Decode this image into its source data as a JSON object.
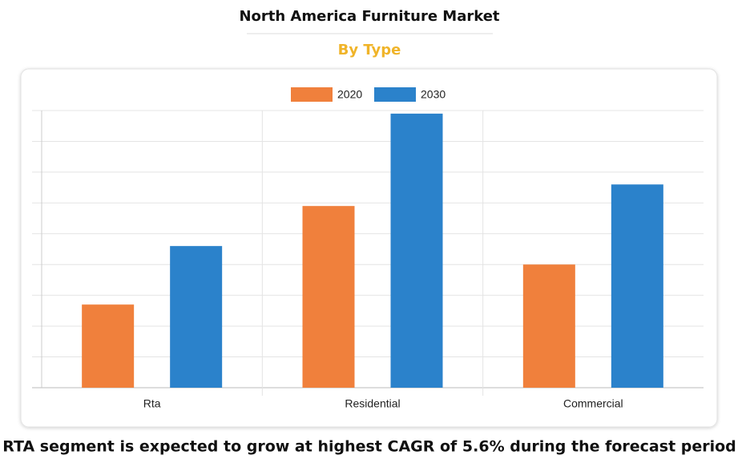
{
  "chart_data": {
    "type": "bar",
    "title": "North America Furniture Market",
    "subtitle": "By Type",
    "footnote": "RTA segment is expected to grow at highest CAGR of 5.6% during the forecast period",
    "categories": [
      "Rta",
      "Residential",
      "Commercial"
    ],
    "series": [
      {
        "name": "2020",
        "color": "#f0803c",
        "values": [
          2.7,
          5.9,
          4.0
        ]
      },
      {
        "name": "2030",
        "color": "#2b82cb",
        "values": [
          4.6,
          8.9,
          6.6
        ]
      }
    ],
    "ylim": [
      0,
      9
    ],
    "yticks": [
      0,
      1,
      2,
      3,
      4,
      5,
      6,
      7,
      8,
      9
    ],
    "grid": true
  }
}
